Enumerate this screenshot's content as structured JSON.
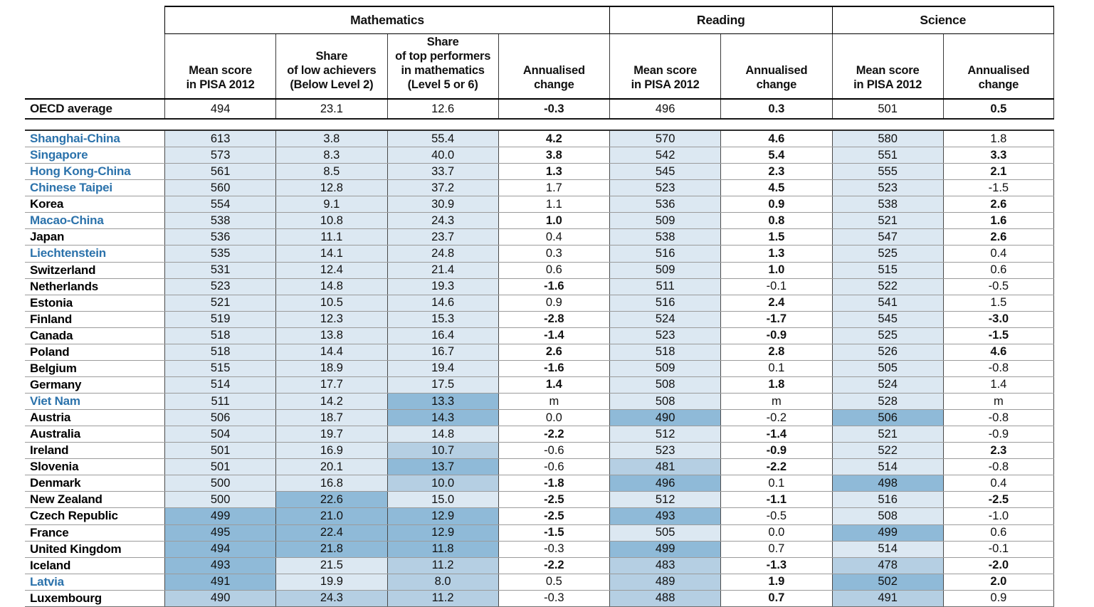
{
  "colors": {
    "shades": {
      "pale": "#dce8f2",
      "mid": "#b5cfe3",
      "dark": "#8fbad8"
    },
    "partner_country_name": "#2b72ab",
    "oecd_country_name": "#000000"
  },
  "header": {
    "groups": [
      {
        "label": "Mathematics"
      },
      {
        "label": "Reading"
      },
      {
        "label": "Science"
      }
    ],
    "columns": [
      {
        "id": "math-mean-score",
        "label": "Mean score\nin PISA 2012"
      },
      {
        "id": "math-low-achievers-share",
        "label": "Share\nof low achievers\n(Below Level 2)"
      },
      {
        "id": "math-top-performers-share",
        "label": "Share\nof top performers\nin mathematics\n(Level 5 or 6)"
      },
      {
        "id": "math-annualised-change",
        "label": "Annualised\nchange"
      },
      {
        "id": "reading-mean-score",
        "label": "Mean score\nin PISA 2012"
      },
      {
        "id": "reading-annualised-change",
        "label": "Annualised\nchange"
      },
      {
        "id": "science-mean-score",
        "label": "Mean score\nin PISA 2012"
      },
      {
        "id": "science-annualised-change",
        "label": "Annualised\nchange"
      }
    ]
  },
  "oecd_row": {
    "label": "OECD average",
    "cells": [
      {
        "v": "494"
      },
      {
        "v": "23.1"
      },
      {
        "v": "12.6"
      },
      {
        "v": "-0.3",
        "b": true
      },
      {
        "v": "496"
      },
      {
        "v": "0.3",
        "b": true
      },
      {
        "v": "501"
      },
      {
        "v": "0.5",
        "b": true
      }
    ]
  },
  "rows": [
    {
      "country": "Shanghai-China",
      "partner": true,
      "cells": [
        {
          "v": "613",
          "s": "pale"
        },
        {
          "v": "3.8",
          "s": "pale"
        },
        {
          "v": "55.4",
          "s": "pale"
        },
        {
          "v": "4.2",
          "b": true
        },
        {
          "v": "570",
          "s": "pale"
        },
        {
          "v": "4.6",
          "b": true
        },
        {
          "v": "580",
          "s": "pale"
        },
        {
          "v": "1.8"
        }
      ]
    },
    {
      "country": "Singapore",
      "partner": true,
      "cells": [
        {
          "v": "573",
          "s": "pale"
        },
        {
          "v": "8.3",
          "s": "pale"
        },
        {
          "v": "40.0",
          "s": "pale"
        },
        {
          "v": "3.8",
          "b": true
        },
        {
          "v": "542",
          "s": "pale"
        },
        {
          "v": "5.4",
          "b": true
        },
        {
          "v": "551",
          "s": "pale"
        },
        {
          "v": "3.3",
          "b": true
        }
      ]
    },
    {
      "country": "Hong Kong-China",
      "partner": true,
      "cells": [
        {
          "v": "561",
          "s": "pale"
        },
        {
          "v": "8.5",
          "s": "pale"
        },
        {
          "v": "33.7",
          "s": "pale"
        },
        {
          "v": "1.3",
          "b": true
        },
        {
          "v": "545",
          "s": "pale"
        },
        {
          "v": "2.3",
          "b": true
        },
        {
          "v": "555",
          "s": "pale"
        },
        {
          "v": "2.1",
          "b": true
        }
      ]
    },
    {
      "country": "Chinese Taipei",
      "partner": true,
      "cells": [
        {
          "v": "560",
          "s": "pale"
        },
        {
          "v": "12.8",
          "s": "pale"
        },
        {
          "v": "37.2",
          "s": "pale"
        },
        {
          "v": "1.7"
        },
        {
          "v": "523",
          "s": "pale"
        },
        {
          "v": "4.5",
          "b": true
        },
        {
          "v": "523",
          "s": "pale"
        },
        {
          "v": "-1.5"
        }
      ]
    },
    {
      "country": "Korea",
      "partner": false,
      "cells": [
        {
          "v": "554",
          "s": "pale"
        },
        {
          "v": "9.1",
          "s": "pale"
        },
        {
          "v": "30.9",
          "s": "pale"
        },
        {
          "v": "1.1"
        },
        {
          "v": "536",
          "s": "pale"
        },
        {
          "v": "0.9",
          "b": true
        },
        {
          "v": "538",
          "s": "pale"
        },
        {
          "v": "2.6",
          "b": true
        }
      ]
    },
    {
      "country": "Macao-China",
      "partner": true,
      "cells": [
        {
          "v": "538",
          "s": "pale"
        },
        {
          "v": "10.8",
          "s": "pale"
        },
        {
          "v": "24.3",
          "s": "pale"
        },
        {
          "v": "1.0",
          "b": true
        },
        {
          "v": "509",
          "s": "pale"
        },
        {
          "v": "0.8",
          "b": true
        },
        {
          "v": "521",
          "s": "pale"
        },
        {
          "v": "1.6",
          "b": true
        }
      ]
    },
    {
      "country": "Japan",
      "partner": false,
      "cells": [
        {
          "v": "536",
          "s": "pale"
        },
        {
          "v": "11.1",
          "s": "pale"
        },
        {
          "v": "23.7",
          "s": "pale"
        },
        {
          "v": "0.4"
        },
        {
          "v": "538",
          "s": "pale"
        },
        {
          "v": "1.5",
          "b": true
        },
        {
          "v": "547",
          "s": "pale"
        },
        {
          "v": "2.6",
          "b": true
        }
      ]
    },
    {
      "country": "Liechtenstein",
      "partner": true,
      "cells": [
        {
          "v": "535",
          "s": "pale"
        },
        {
          "v": "14.1",
          "s": "pale"
        },
        {
          "v": "24.8",
          "s": "pale"
        },
        {
          "v": "0.3"
        },
        {
          "v": "516",
          "s": "pale"
        },
        {
          "v": "1.3",
          "b": true
        },
        {
          "v": "525",
          "s": "pale"
        },
        {
          "v": "0.4"
        }
      ]
    },
    {
      "country": "Switzerland",
      "partner": false,
      "cells": [
        {
          "v": "531",
          "s": "pale"
        },
        {
          "v": "12.4",
          "s": "pale"
        },
        {
          "v": "21.4",
          "s": "pale"
        },
        {
          "v": "0.6"
        },
        {
          "v": "509",
          "s": "pale"
        },
        {
          "v": "1.0",
          "b": true
        },
        {
          "v": "515",
          "s": "pale"
        },
        {
          "v": "0.6"
        }
      ]
    },
    {
      "country": "Netherlands",
      "partner": false,
      "cells": [
        {
          "v": "523",
          "s": "pale"
        },
        {
          "v": "14.8",
          "s": "pale"
        },
        {
          "v": "19.3",
          "s": "pale"
        },
        {
          "v": "-1.6",
          "b": true
        },
        {
          "v": "511",
          "s": "pale"
        },
        {
          "v": "-0.1"
        },
        {
          "v": "522",
          "s": "pale"
        },
        {
          "v": "-0.5"
        }
      ]
    },
    {
      "country": "Estonia",
      "partner": false,
      "cells": [
        {
          "v": "521",
          "s": "pale"
        },
        {
          "v": "10.5",
          "s": "pale"
        },
        {
          "v": "14.6",
          "s": "pale"
        },
        {
          "v": "0.9"
        },
        {
          "v": "516",
          "s": "pale"
        },
        {
          "v": "2.4",
          "b": true
        },
        {
          "v": "541",
          "s": "pale"
        },
        {
          "v": "1.5"
        }
      ]
    },
    {
      "country": "Finland",
      "partner": false,
      "cells": [
        {
          "v": "519",
          "s": "pale"
        },
        {
          "v": "12.3",
          "s": "pale"
        },
        {
          "v": "15.3",
          "s": "pale"
        },
        {
          "v": "-2.8",
          "b": true
        },
        {
          "v": "524",
          "s": "pale"
        },
        {
          "v": "-1.7",
          "b": true
        },
        {
          "v": "545",
          "s": "pale"
        },
        {
          "v": "-3.0",
          "b": true
        }
      ]
    },
    {
      "country": "Canada",
      "partner": false,
      "cells": [
        {
          "v": "518",
          "s": "pale"
        },
        {
          "v": "13.8",
          "s": "pale"
        },
        {
          "v": "16.4",
          "s": "pale"
        },
        {
          "v": "-1.4",
          "b": true
        },
        {
          "v": "523",
          "s": "pale"
        },
        {
          "v": "-0.9",
          "b": true
        },
        {
          "v": "525",
          "s": "pale"
        },
        {
          "v": "-1.5",
          "b": true
        }
      ]
    },
    {
      "country": "Poland",
      "partner": false,
      "cells": [
        {
          "v": "518",
          "s": "pale"
        },
        {
          "v": "14.4",
          "s": "pale"
        },
        {
          "v": "16.7",
          "s": "pale"
        },
        {
          "v": "2.6",
          "b": true
        },
        {
          "v": "518",
          "s": "pale"
        },
        {
          "v": "2.8",
          "b": true
        },
        {
          "v": "526",
          "s": "pale"
        },
        {
          "v": "4.6",
          "b": true
        }
      ]
    },
    {
      "country": "Belgium",
      "partner": false,
      "cells": [
        {
          "v": "515",
          "s": "pale"
        },
        {
          "v": "18.9",
          "s": "pale"
        },
        {
          "v": "19.4",
          "s": "pale"
        },
        {
          "v": "-1.6",
          "b": true
        },
        {
          "v": "509",
          "s": "pale"
        },
        {
          "v": "0.1"
        },
        {
          "v": "505",
          "s": "pale"
        },
        {
          "v": "-0.8"
        }
      ]
    },
    {
      "country": "Germany",
      "partner": false,
      "cells": [
        {
          "v": "514",
          "s": "pale"
        },
        {
          "v": "17.7",
          "s": "pale"
        },
        {
          "v": "17.5",
          "s": "pale"
        },
        {
          "v": "1.4",
          "b": true
        },
        {
          "v": "508",
          "s": "pale"
        },
        {
          "v": "1.8",
          "b": true
        },
        {
          "v": "524",
          "s": "pale"
        },
        {
          "v": "1.4"
        }
      ]
    },
    {
      "country": "Viet Nam",
      "partner": true,
      "cells": [
        {
          "v": "511",
          "s": "pale"
        },
        {
          "v": "14.2",
          "s": "pale"
        },
        {
          "v": "13.3",
          "s": "dark"
        },
        {
          "v": "m"
        },
        {
          "v": "508",
          "s": "pale"
        },
        {
          "v": "m"
        },
        {
          "v": "528",
          "s": "pale"
        },
        {
          "v": "m"
        }
      ]
    },
    {
      "country": "Austria",
      "partner": false,
      "cells": [
        {
          "v": "506",
          "s": "pale"
        },
        {
          "v": "18.7",
          "s": "pale"
        },
        {
          "v": "14.3",
          "s": "dark"
        },
        {
          "v": "0.0"
        },
        {
          "v": "490",
          "s": "dark"
        },
        {
          "v": "-0.2"
        },
        {
          "v": "506",
          "s": "dark"
        },
        {
          "v": "-0.8"
        }
      ]
    },
    {
      "country": "Australia",
      "partner": false,
      "cells": [
        {
          "v": "504",
          "s": "pale"
        },
        {
          "v": "19.7",
          "s": "pale"
        },
        {
          "v": "14.8",
          "s": "pale"
        },
        {
          "v": "-2.2",
          "b": true
        },
        {
          "v": "512",
          "s": "pale"
        },
        {
          "v": "-1.4",
          "b": true
        },
        {
          "v": "521",
          "s": "pale"
        },
        {
          "v": "-0.9"
        }
      ]
    },
    {
      "country": "Ireland",
      "partner": false,
      "cells": [
        {
          "v": "501",
          "s": "pale"
        },
        {
          "v": "16.9",
          "s": "pale"
        },
        {
          "v": "10.7",
          "s": "mid"
        },
        {
          "v": "-0.6"
        },
        {
          "v": "523",
          "s": "pale"
        },
        {
          "v": "-0.9",
          "b": true
        },
        {
          "v": "522",
          "s": "pale"
        },
        {
          "v": "2.3",
          "b": true
        }
      ]
    },
    {
      "country": "Slovenia",
      "partner": false,
      "cells": [
        {
          "v": "501",
          "s": "pale"
        },
        {
          "v": "20.1",
          "s": "pale"
        },
        {
          "v": "13.7",
          "s": "dark"
        },
        {
          "v": "-0.6"
        },
        {
          "v": "481",
          "s": "mid"
        },
        {
          "v": "-2.2",
          "b": true
        },
        {
          "v": "514",
          "s": "pale"
        },
        {
          "v": "-0.8"
        }
      ]
    },
    {
      "country": "Denmark",
      "partner": false,
      "cells": [
        {
          "v": "500",
          "s": "pale"
        },
        {
          "v": "16.8",
          "s": "pale"
        },
        {
          "v": "10.0",
          "s": "mid"
        },
        {
          "v": "-1.8",
          "b": true
        },
        {
          "v": "496",
          "s": "dark"
        },
        {
          "v": "0.1"
        },
        {
          "v": "498",
          "s": "dark"
        },
        {
          "v": "0.4"
        }
      ]
    },
    {
      "country": "New Zealand",
      "partner": false,
      "cells": [
        {
          "v": "500",
          "s": "pale"
        },
        {
          "v": "22.6",
          "s": "dark"
        },
        {
          "v": "15.0",
          "s": "pale"
        },
        {
          "v": "-2.5",
          "b": true
        },
        {
          "v": "512",
          "s": "pale"
        },
        {
          "v": "-1.1",
          "b": true
        },
        {
          "v": "516",
          "s": "pale"
        },
        {
          "v": "-2.5",
          "b": true
        }
      ]
    },
    {
      "country": "Czech Republic",
      "partner": false,
      "cells": [
        {
          "v": "499",
          "s": "dark"
        },
        {
          "v": "21.0",
          "s": "dark"
        },
        {
          "v": "12.9",
          "s": "dark"
        },
        {
          "v": "-2.5",
          "b": true
        },
        {
          "v": "493",
          "s": "dark"
        },
        {
          "v": "-0.5"
        },
        {
          "v": "508",
          "s": "pale"
        },
        {
          "v": "-1.0"
        }
      ]
    },
    {
      "country": "France",
      "partner": false,
      "cells": [
        {
          "v": "495",
          "s": "dark"
        },
        {
          "v": "22.4",
          "s": "dark"
        },
        {
          "v": "12.9",
          "s": "dark"
        },
        {
          "v": "-1.5",
          "b": true
        },
        {
          "v": "505",
          "s": "pale"
        },
        {
          "v": "0.0"
        },
        {
          "v": "499",
          "s": "dark"
        },
        {
          "v": "0.6"
        }
      ]
    },
    {
      "country": "United Kingdom",
      "partner": false,
      "cells": [
        {
          "v": "494",
          "s": "dark"
        },
        {
          "v": "21.8",
          "s": "dark"
        },
        {
          "v": "11.8",
          "s": "dark"
        },
        {
          "v": "-0.3"
        },
        {
          "v": "499",
          "s": "dark"
        },
        {
          "v": "0.7"
        },
        {
          "v": "514",
          "s": "pale"
        },
        {
          "v": "-0.1"
        }
      ]
    },
    {
      "country": "Iceland",
      "partner": false,
      "cells": [
        {
          "v": "493",
          "s": "dark"
        },
        {
          "v": "21.5",
          "s": "pale"
        },
        {
          "v": "11.2",
          "s": "mid"
        },
        {
          "v": "-2.2",
          "b": true
        },
        {
          "v": "483",
          "s": "mid"
        },
        {
          "v": "-1.3",
          "b": true
        },
        {
          "v": "478",
          "s": "mid"
        },
        {
          "v": "-2.0",
          "b": true
        }
      ]
    },
    {
      "country": "Latvia",
      "partner": true,
      "cells": [
        {
          "v": "491",
          "s": "dark"
        },
        {
          "v": "19.9",
          "s": "pale"
        },
        {
          "v": "8.0",
          "s": "mid"
        },
        {
          "v": "0.5"
        },
        {
          "v": "489",
          "s": "mid"
        },
        {
          "v": "1.9",
          "b": true
        },
        {
          "v": "502",
          "s": "dark"
        },
        {
          "v": "2.0",
          "b": true
        }
      ]
    },
    {
      "country": "Luxembourg",
      "partner": false,
      "cells": [
        {
          "v": "490",
          "s": "mid"
        },
        {
          "v": "24.3",
          "s": "mid"
        },
        {
          "v": "11.2",
          "s": "mid"
        },
        {
          "v": "-0.3"
        },
        {
          "v": "488",
          "s": "mid"
        },
        {
          "v": "0.7",
          "b": true
        },
        {
          "v": "491",
          "s": "mid"
        },
        {
          "v": "0.9"
        }
      ]
    }
  ]
}
